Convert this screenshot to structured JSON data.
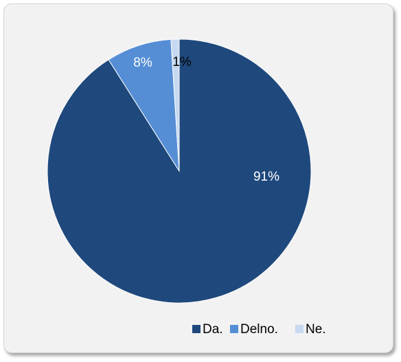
{
  "chart_data": {
    "type": "pie",
    "categories": [
      "Da.",
      "Delno.",
      "Ne."
    ],
    "values": [
      91,
      8,
      1
    ],
    "data_labels": [
      "91%",
      "8%",
      "1%"
    ],
    "colors": [
      "#1f497d",
      "#558ed5",
      "#c6d9f1"
    ],
    "label_colors": [
      "#ffffff",
      "#ffffff",
      "#000000"
    ],
    "start_angle_deg": 0,
    "direction": "clockwise",
    "legend_position": "bottom-right"
  }
}
